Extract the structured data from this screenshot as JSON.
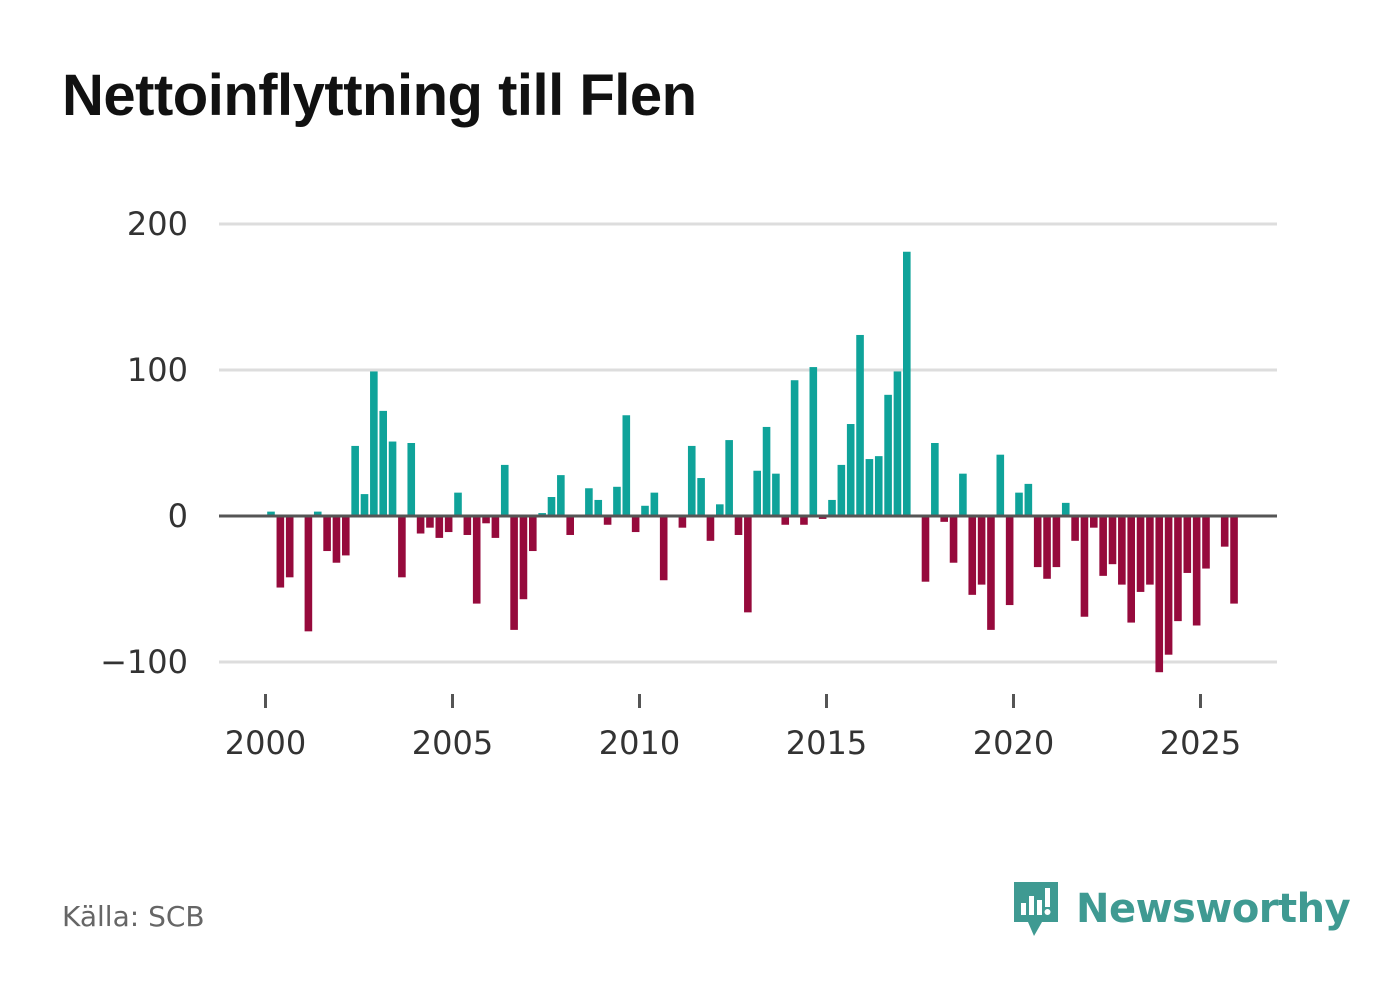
{
  "title": "Nettoinflyttning till Flen",
  "source": "Källa: SCB",
  "brand": {
    "name": "Newsworthy",
    "icon": "newsworthy-logo-icon",
    "color": "#3f9a92"
  },
  "colors": {
    "positive": "#0fa39a",
    "negative": "#960a3c",
    "grid": "#dddddd",
    "zero_line": "#555555",
    "axis_text": "#333333"
  },
  "chart_data": {
    "type": "bar",
    "title": "Nettoinflyttning till Flen",
    "xlabel": "",
    "ylabel": "",
    "frequency": "quarterly",
    "start_year": 2000,
    "ylim": [
      -110,
      205
    ],
    "xlim": [
      1999.5,
      2027.05
    ],
    "y_ticks": [
      -100,
      0,
      100,
      200
    ],
    "y_tick_labels": [
      "−100",
      "0",
      "100",
      "200"
    ],
    "x_ticks": [
      2000,
      2005,
      2010,
      2015,
      2020,
      2025
    ],
    "x_tick_labels": [
      "2000",
      "2005",
      "2010",
      "2015",
      "2020",
      "2025"
    ],
    "grid": true,
    "values": [
      3,
      -49,
      -42,
      0,
      -79,
      3,
      -24,
      -32,
      -27,
      48,
      15,
      99,
      72,
      51,
      -42,
      50,
      -12,
      -8,
      -15,
      -11,
      16,
      -13,
      -60,
      -5,
      -15,
      35,
      -78,
      -57,
      -24,
      2,
      13,
      28,
      -13,
      0,
      19,
      11,
      -6,
      20,
      69,
      -11,
      7,
      16,
      -44,
      0,
      -8,
      48,
      26,
      -17,
      8,
      52,
      -13,
      -66,
      31,
      61,
      29,
      -6,
      93,
      -6,
      102,
      -2,
      11,
      35,
      63,
      124,
      39,
      41,
      83,
      99,
      181,
      0,
      -45,
      50,
      -4,
      -32,
      29,
      -54,
      -47,
      -78,
      42,
      -61,
      16,
      22,
      -35,
      -43,
      -35,
      9,
      -17,
      -69,
      -8,
      -41,
      -33,
      -47,
      -73,
      -52,
      -47,
      -107,
      -95,
      -72,
      -39,
      -75,
      -36,
      0,
      -21,
      -60
    ]
  }
}
